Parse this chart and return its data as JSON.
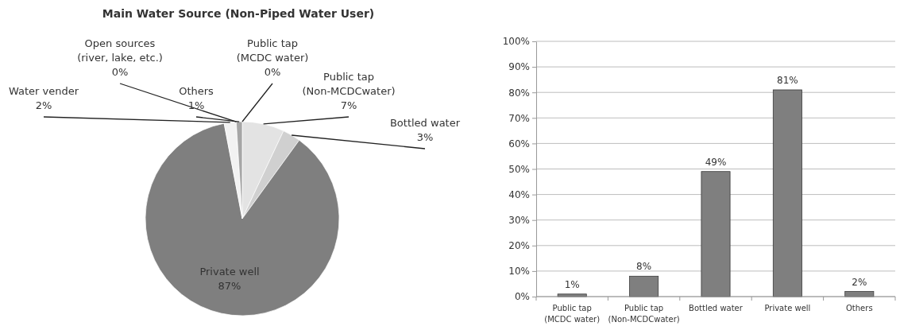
{
  "chart_data": [
    {
      "type": "pie",
      "title": "Main Water Source (Non-Piped Water User)",
      "categories": [
        "Public tap (MCDC water)",
        "Public tap (Non-MCDCwater)",
        "Bottled water",
        "Private well",
        "Water vender",
        "Open sources (river, lake, etc.)",
        "Others"
      ],
      "values": [
        0,
        7,
        3,
        87,
        2,
        0,
        1
      ],
      "colors": [
        "#a6a6a6",
        "#e3e3e3",
        "#d0d0d0",
        "#7f7f7f",
        "#f2f2f2",
        "#bfbfbf",
        "#a6a6a6"
      ],
      "value_labels": [
        "0%",
        "7%",
        "3%",
        "87%",
        "2%",
        "0%",
        "1%"
      ]
    },
    {
      "type": "bar",
      "categories": [
        "Public tap (MCDC water)",
        "Public tap (Non-MCDCwater)",
        "Bottled water",
        "Private well",
        "Others"
      ],
      "values": [
        1,
        8,
        49,
        81,
        2
      ],
      "color": "#7f7f7f",
      "ylim": [
        0,
        100
      ],
      "yticks": [
        {
          "value": 0,
          "label": "0%"
        },
        {
          "value": 10,
          "label": "10%"
        },
        {
          "value": 20,
          "label": "20%"
        },
        {
          "value": 30,
          "label": "30%"
        },
        {
          "value": 40,
          "label": "40%"
        },
        {
          "value": 50,
          "label": "50%"
        },
        {
          "value": 60,
          "label": "60%"
        },
        {
          "value": 70,
          "label": "70%"
        },
        {
          "value": 80,
          "label": "80%"
        },
        {
          "value": 90,
          "label": "90%"
        },
        {
          "value": 100,
          "label": "100%"
        }
      ],
      "grid": "y",
      "value_labels": [
        "1%",
        "8%",
        "49%",
        "81%",
        "2%"
      ]
    }
  ]
}
